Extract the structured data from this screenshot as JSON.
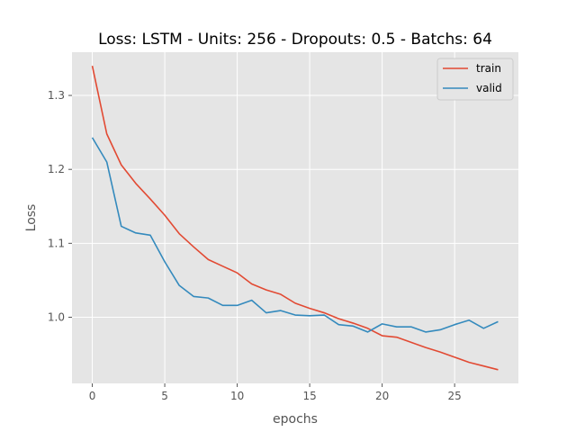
{
  "chart_data": {
    "type": "line",
    "title": "Loss: LSTM - Units: 256 - Dropouts: 0.5 - Batchs: 64",
    "xlabel": "epochs",
    "ylabel": "Loss",
    "xlim": [
      -1.4,
      29.4
    ],
    "ylim": [
      0.9105,
      1.3585
    ],
    "xticks": [
      0,
      5,
      10,
      15,
      20,
      25
    ],
    "xtick_labels": [
      "0",
      "5",
      "10",
      "15",
      "20",
      "25"
    ],
    "yticks": [
      1.0,
      1.1,
      1.2,
      1.3
    ],
    "ytick_labels": [
      "1.0",
      "1.1",
      "1.2",
      "1.3"
    ],
    "grid": true,
    "legend_position": "top-right",
    "x": [
      0,
      1,
      2,
      3,
      4,
      5,
      6,
      7,
      8,
      9,
      10,
      11,
      12,
      13,
      14,
      15,
      16,
      17,
      18,
      19,
      20,
      21,
      22,
      23,
      24,
      25,
      26,
      27,
      28
    ],
    "series": [
      {
        "name": "train",
        "color": "#E24A33",
        "values": [
          1.34,
          1.248,
          1.206,
          1.181,
          1.16,
          1.138,
          1.113,
          1.095,
          1.078,
          1.069,
          1.06,
          1.045,
          1.037,
          1.031,
          1.019,
          1.012,
          1.006,
          0.998,
          0.992,
          0.985,
          0.975,
          0.973,
          0.966,
          0.959,
          0.953,
          0.946,
          0.939,
          0.934,
          0.929
        ]
      },
      {
        "name": "valid",
        "color": "#348ABD",
        "values": [
          1.243,
          1.21,
          1.123,
          1.114,
          1.111,
          1.075,
          1.043,
          1.028,
          1.026,
          1.016,
          1.016,
          1.023,
          1.006,
          1.009,
          1.003,
          1.002,
          1.003,
          0.99,
          0.988,
          0.98,
          0.991,
          0.987,
          0.987,
          0.98,
          0.983,
          0.99,
          0.996,
          0.985,
          0.994
        ]
      }
    ]
  }
}
